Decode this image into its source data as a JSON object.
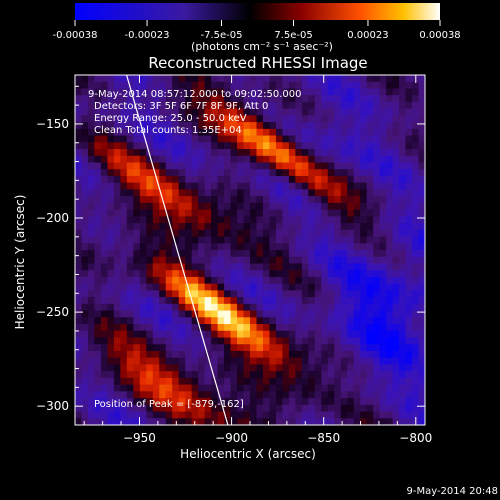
{
  "colorbar": {
    "ticks": [
      "-0.00038",
      "-0.00023",
      "-7.5e-05",
      "7.5e-05",
      "0.00023",
      "0.00038"
    ],
    "unit_label": "(photons cm⁻² s⁻¹ asec⁻²)",
    "range": [
      -0.00038,
      0.00038
    ]
  },
  "chart_data": {
    "type": "heatmap",
    "title": "Reconstructed RHESSI Image",
    "xlabel": "Heliocentric X (arcsec)",
    "ylabel": "Heliocentric Y (arcsec)",
    "xlim": [
      -985,
      -795
    ],
    "ylim": [
      -310,
      -124
    ],
    "x_ticks": [
      -950,
      -900,
      -850,
      -800
    ],
    "x_tick_labels": [
      "−950",
      "−900",
      "−850",
      "−800"
    ],
    "y_ticks": [
      -150,
      -200,
      -250,
      -300
    ],
    "y_tick_labels": [
      "−150",
      "−200",
      "−250",
      "−300"
    ],
    "annotations": [
      "9-May-2014 08:57:12.000 to 09:02:50.000",
      "Detectors: 3F 5F 6F 7F 8F 9F, Att 0",
      "Energy Range: 25.0 - 50.0 keV",
      "Clean     Total counts: 1.35E+04"
    ],
    "peak_label": "Position of Peak = [-879,-162]",
    "peak": [
      -879,
      -162
    ],
    "limb_line": [
      [
        -957,
        -124
      ],
      [
        -902,
        -310
      ]
    ]
  },
  "footer_timestamp": "9-May-2014 20:48"
}
